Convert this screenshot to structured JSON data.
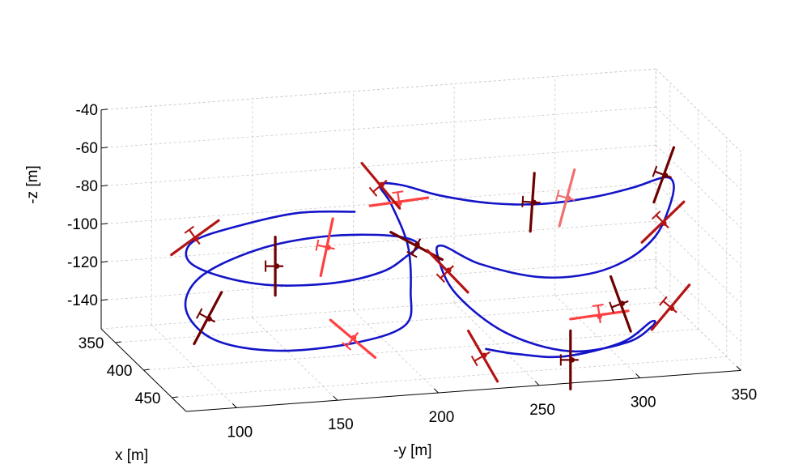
{
  "chart_data": {
    "type": "line",
    "projection": "3d",
    "title": "",
    "xlabel": "x [m]",
    "ylabel": "-y [m]",
    "zlabel": "-z [m]",
    "xlim": [
      325,
      475
    ],
    "ylim": [
      75,
      350
    ],
    "zlim": [
      -155,
      -40
    ],
    "grid": true,
    "x_ticks": [
      "350",
      "400",
      "450"
    ],
    "y_ticks": [
      "100",
      "150",
      "200",
      "250",
      "300",
      "350"
    ],
    "z_ticks": [
      "-40",
      "-60",
      "-80",
      "-100",
      "-120",
      "-140"
    ],
    "colors": {
      "trajectory": "#1414c8",
      "aircraft_dark": "#6e0000",
      "aircraft_mid": "#b41414",
      "aircraft_light": "#ff4040",
      "aircraft_pale": "#f07070"
    },
    "series": [
      {
        "points": [
          [
            400,
            180,
            -80
          ],
          [
            398,
            152,
            -79
          ],
          [
            397,
            122,
            -84
          ],
          [
            398,
            100,
            -90
          ],
          [
            405,
            96,
            -98
          ],
          [
            418,
            108,
            -103
          ],
          [
            430,
            130,
            -106
          ],
          [
            434,
            160,
            -106
          ],
          [
            428,
            185,
            -104
          ],
          [
            418,
            200,
            -100
          ],
          [
            404,
            210,
            -98
          ],
          [
            390,
            200,
            -97
          ],
          [
            380,
            170,
            -98
          ],
          [
            375,
            138,
            -104
          ],
          [
            382,
            108,
            -114
          ],
          [
            400,
            96,
            -125
          ],
          [
            422,
            104,
            -135
          ],
          [
            432,
            132,
            -140
          ],
          [
            432,
            170,
            -139
          ],
          [
            424,
            198,
            -134
          ],
          [
            412,
            204,
            -120
          ],
          [
            400,
            206,
            -100
          ],
          [
            392,
            200,
            -80
          ],
          [
            390,
            195,
            -70
          ],
          [
            393,
            205,
            -70
          ],
          [
            399,
            222,
            -75
          ],
          [
            406,
            246,
            -79
          ],
          [
            410,
            270,
            -80
          ],
          [
            408,
            296,
            -79
          ],
          [
            400,
            318,
            -78
          ],
          [
            390,
            336,
            -77
          ],
          [
            385,
            342,
            -83
          ],
          [
            390,
            338,
            -94
          ],
          [
            402,
            328,
            -104
          ],
          [
            418,
            310,
            -110
          ],
          [
            428,
            288,
            -113
          ],
          [
            430,
            262,
            -112
          ],
          [
            420,
            236,
            -106
          ],
          [
            404,
            222,
            -100
          ],
          [
            396,
            222,
            -108
          ],
          [
            406,
            228,
            -125
          ],
          [
            430,
            246,
            -140
          ],
          [
            450,
            272,
            -146
          ],
          [
            452,
            300,
            -143
          ],
          [
            440,
            316,
            -139
          ],
          [
            430,
            318,
            -140
          ],
          [
            442,
            300,
            -146
          ],
          [
            455,
            268,
            -147
          ],
          [
            458,
            244,
            -143
          ],
          [
            458,
            228,
            -139
          ]
        ]
      }
    ],
    "aircraft": [
      {
        "at": [
          398,
          101,
          -88
        ],
        "heading_deg": 54,
        "shade": "aircraft_mid"
      },
      {
        "at": [
          392,
          168,
          -100
        ],
        "heading_deg": 12,
        "shade": "aircraft_light"
      },
      {
        "at": [
          408,
          138,
          -103
        ],
        "heading_deg": 0,
        "shade": "aircraft_dark"
      },
      {
        "at": [
          410,
          104,
          -127
        ],
        "heading_deg": 28,
        "shade": "aircraft_dark"
      },
      {
        "at": [
          431,
          170,
          -137
        ],
        "heading_deg": -50,
        "shade": "aircraft_light"
      },
      {
        "at": [
          401,
          210,
          -100
        ],
        "heading_deg": -62,
        "shade": "aircraft_dark"
      },
      {
        "at": [
          395,
          203,
          -78
        ],
        "heading_deg": 82,
        "shade": "aircraft_light"
      },
      {
        "at": [
          391,
          195,
          -70
        ],
        "heading_deg": -40,
        "shade": "aircraft_mid"
      },
      {
        "at": [
          406,
          266,
          -80
        ],
        "heading_deg": 4,
        "shade": "aircraft_dark"
      },
      {
        "at": [
          403,
          284,
          -80
        ],
        "heading_deg": 15,
        "shade": "aircraft_pale"
      },
      {
        "at": [
          389,
          336,
          -76
        ],
        "heading_deg": 20,
        "shade": "aircraft_dark"
      },
      {
        "at": [
          398,
          333,
          -98
        ],
        "heading_deg": 46,
        "shade": "aircraft_mid"
      },
      {
        "at": [
          406,
          224,
          -113
        ],
        "heading_deg": -44,
        "shade": "aircraft_mid"
      },
      {
        "at": [
          428,
          293,
          -135
        ],
        "heading_deg": 82,
        "shade": "aircraft_light"
      },
      {
        "at": [
          441,
          300,
          -126
        ],
        "heading_deg": -20,
        "shade": "aircraft_dark"
      },
      {
        "at": [
          440,
          325,
          -130
        ],
        "heading_deg": 40,
        "shade": "aircraft_mid"
      },
      {
        "at": [
          454,
          228,
          -144
        ],
        "heading_deg": -30,
        "shade": "aircraft_mid"
      },
      {
        "at": [
          452,
          272,
          -150
        ],
        "heading_deg": 0,
        "shade": "aircraft_dark"
      }
    ]
  }
}
